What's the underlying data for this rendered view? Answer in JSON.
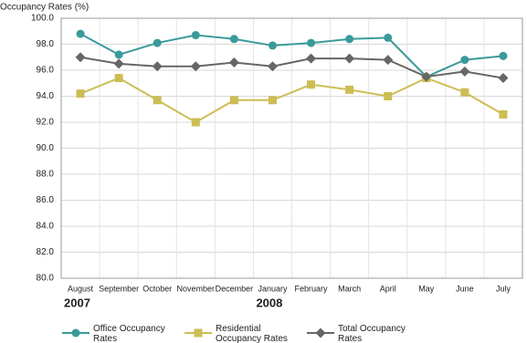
{
  "chart_data": {
    "type": "line",
    "y_axis_label": "Occupancy Rates (%)",
    "categories": [
      "August",
      "September",
      "October",
      "November",
      "December",
      "January",
      "February",
      "March",
      "April",
      "May",
      "June",
      "July"
    ],
    "years": [
      "2007",
      null,
      null,
      null,
      null,
      "2008",
      null,
      null,
      null,
      null,
      null,
      null
    ],
    "series": [
      {
        "name": "Office Occupancy Rates",
        "color": "#3a9a9a",
        "marker": "circle",
        "values": [
          98.8,
          97.2,
          98.1,
          98.7,
          98.4,
          97.9,
          98.1,
          98.4,
          98.5,
          95.5,
          96.8,
          97.1
        ]
      },
      {
        "name": "Residential Occupancy Rates",
        "color": "#cdbd55",
        "marker": "square",
        "values": [
          94.2,
          95.4,
          93.7,
          92.0,
          93.7,
          93.7,
          94.9,
          94.5,
          94.0,
          95.4,
          94.3,
          92.6
        ]
      },
      {
        "name": "Total Occupancy Rates",
        "color": "#666666",
        "marker": "diamond",
        "values": [
          97.0,
          96.5,
          96.3,
          96.3,
          96.6,
          96.3,
          96.9,
          96.9,
          96.8,
          95.5,
          95.9,
          95.4
        ]
      }
    ],
    "ylim": [
      80,
      100
    ],
    "yticks": [
      {
        "value": 80,
        "label": "80.0"
      },
      {
        "value": 82,
        "label": "82.0"
      },
      {
        "value": 84,
        "label": "84.0"
      },
      {
        "value": 86,
        "label": "86.0"
      },
      {
        "value": 88,
        "label": "88.0"
      },
      {
        "value": 90,
        "label": "90.0"
      },
      {
        "value": 92,
        "label": "92.0"
      },
      {
        "value": 94,
        "label": "94.0"
      },
      {
        "value": 96,
        "label": "96.0"
      },
      {
        "value": 98,
        "label": "98.0"
      },
      {
        "value": 100,
        "label": "100.0"
      }
    ],
    "grid": true
  }
}
